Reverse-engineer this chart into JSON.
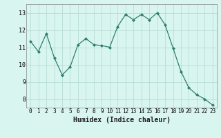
{
  "x": [
    0,
    1,
    2,
    3,
    4,
    5,
    6,
    7,
    8,
    9,
    10,
    11,
    12,
    13,
    14,
    15,
    16,
    17,
    18,
    19,
    20,
    21,
    22,
    23
  ],
  "y": [
    11.35,
    10.75,
    11.8,
    10.4,
    9.4,
    9.85,
    11.15,
    11.5,
    11.15,
    11.1,
    11.0,
    12.2,
    12.9,
    12.6,
    12.9,
    12.6,
    13.0,
    12.3,
    10.95,
    9.6,
    8.65,
    8.25,
    8.0,
    7.65
  ],
  "line_color": "#2e7d6e",
  "marker": "D",
  "marker_size": 2.0,
  "bg_color": "#d8f5f0",
  "grid_color": "#b8ddd8",
  "xlabel": "Humidex (Indice chaleur)",
  "ylim": [
    7.5,
    13.5
  ],
  "xlim": [
    -0.5,
    23.5
  ],
  "yticks": [
    8,
    9,
    10,
    11,
    12,
    13
  ],
  "xticks": [
    0,
    1,
    2,
    3,
    4,
    5,
    6,
    7,
    8,
    9,
    10,
    11,
    12,
    13,
    14,
    15,
    16,
    17,
    18,
    19,
    20,
    21,
    22,
    23
  ],
  "tick_fontsize": 5.5,
  "xlabel_fontsize": 7.0,
  "linewidth": 0.9
}
